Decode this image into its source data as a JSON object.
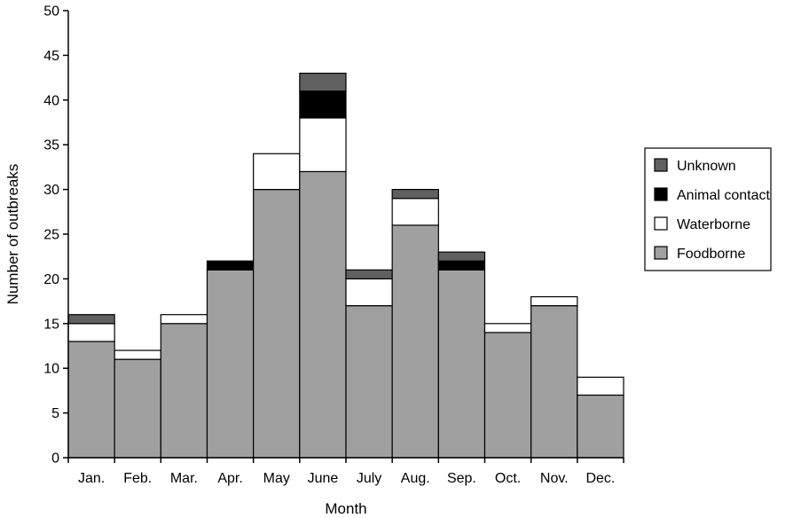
{
  "chart_data": {
    "type": "bar",
    "stacked": true,
    "categories": [
      "Jan.",
      "Feb.",
      "Mar.",
      "Apr.",
      "May",
      "June",
      "July",
      "Aug.",
      "Sep.",
      "Oct.",
      "Nov.",
      "Dec."
    ],
    "series": [
      {
        "name": "Foodborne",
        "color": "#a0a0a0",
        "values": [
          13,
          11,
          15,
          21,
          30,
          32,
          17,
          26,
          21,
          14,
          17,
          7
        ]
      },
      {
        "name": "Waterborne",
        "color": "#ffffff",
        "values": [
          2,
          1,
          1,
          0,
          4,
          6,
          3,
          3,
          0,
          1,
          1,
          2
        ]
      },
      {
        "name": "Animal contact",
        "color": "#000000",
        "values": [
          0,
          0,
          0,
          1,
          0,
          3,
          0,
          0,
          1,
          0,
          0,
          0
        ]
      },
      {
        "name": "Unknown",
        "color": "#606060",
        "values": [
          1,
          0,
          0,
          0,
          0,
          2,
          1,
          1,
          1,
          0,
          0,
          0
        ]
      }
    ],
    "legend_order": [
      "Unknown",
      "Animal contact",
      "Waterborne",
      "Foodborne"
    ],
    "title": "",
    "xlabel": "Month",
    "ylabel": "Number of outbreaks",
    "ylim": [
      0,
      50
    ],
    "yticks": [
      0,
      5,
      10,
      15,
      20,
      25,
      30,
      35,
      40,
      45,
      50
    ],
    "grid": false,
    "legend_position": "right"
  }
}
